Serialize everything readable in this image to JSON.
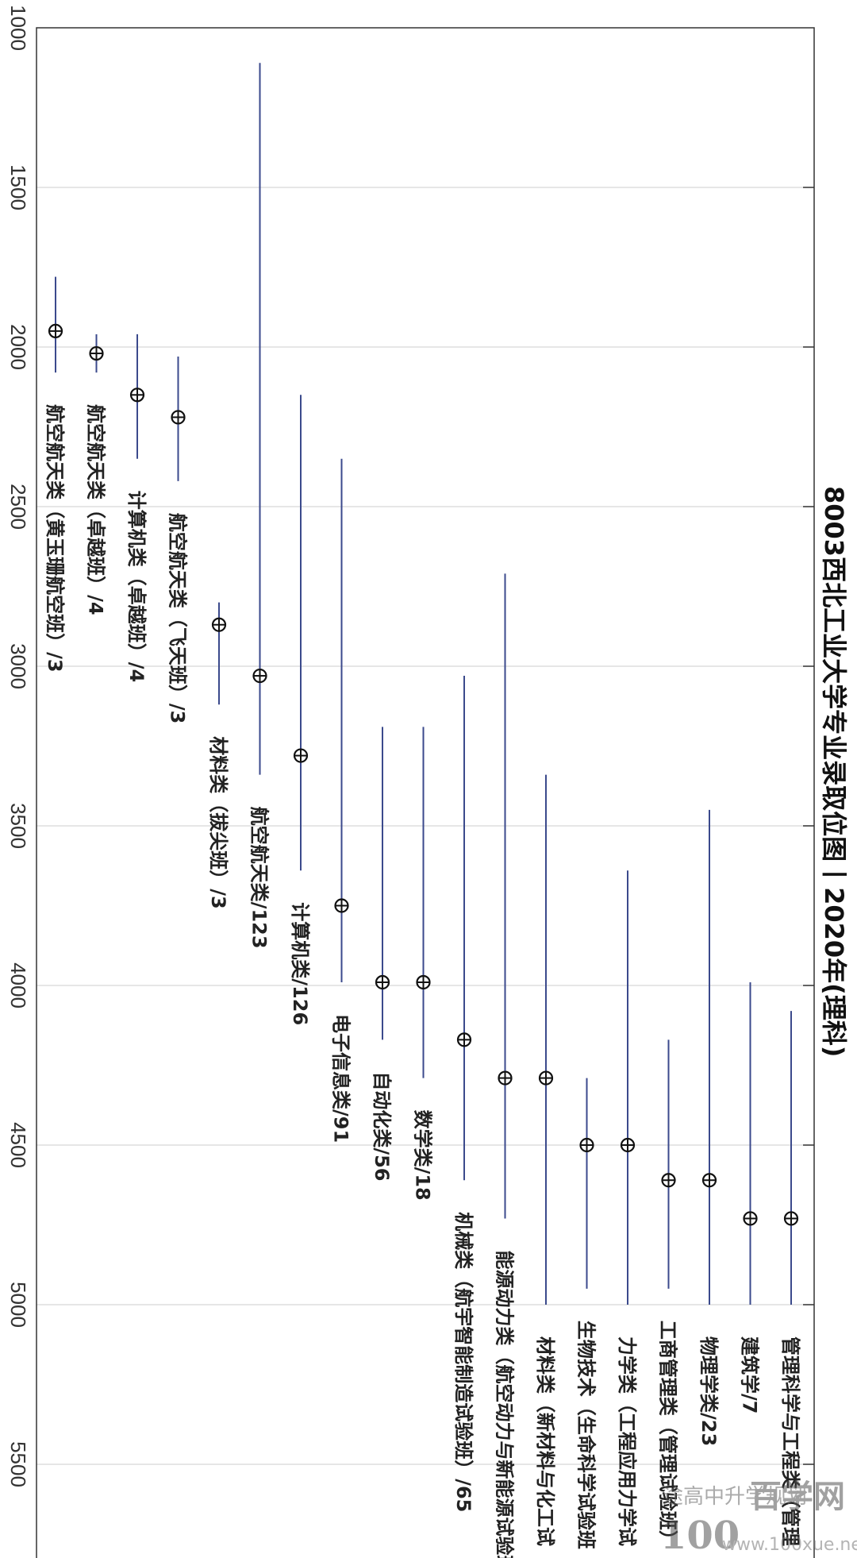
{
  "chart_data": {
    "type": "scatter",
    "title": "8003西北工业大学专业录取位图丨2020年(理科)",
    "xlabel": "",
    "ylabel": "",
    "rank_axis_range": [
      1000,
      5800
    ],
    "rank_ticks": [
      1000,
      1500,
      2000,
      2500,
      3000,
      3500,
      4000,
      4500,
      5000,
      5500
    ],
    "grid": true,
    "series": [
      {
        "points": [
          {
            "label": "航空航天类（黄玉珊航空班）/3",
            "marker": 1950,
            "low": 1780,
            "high": 2080
          },
          {
            "label": "航空航天类（卓越班）/4",
            "marker": 2020,
            "low": 1960,
            "high": 2080
          },
          {
            "label": "计算机类（卓越班）/4",
            "marker": 2150,
            "low": 1960,
            "high": 2350
          },
          {
            "label": "航空航天类（飞天班）/3",
            "marker": 2220,
            "low": 2030,
            "high": 2420
          },
          {
            "label": "材料类（拔尖班）/3",
            "marker": 2870,
            "low": 2800,
            "high": 3120
          },
          {
            "label": "航空航天类/123",
            "marker": 3030,
            "low": 1110,
            "high": 3340
          },
          {
            "label": "计算机类/126",
            "marker": 3280,
            "low": 2150,
            "high": 3640
          },
          {
            "label": "电子信息类/91",
            "marker": 3750,
            "low": 2350,
            "high": 3990
          },
          {
            "label": "自动化类/56",
            "marker": 3990,
            "low": 3190,
            "high": 4170
          },
          {
            "label": "数学类/18",
            "marker": 3990,
            "low": 3190,
            "high": 4290
          },
          {
            "label": "机械类（航宇智能制造试验班）/65",
            "marker": 4170,
            "low": 3030,
            "high": 4610
          },
          {
            "label": "能源动力类（航空动力与新能源试验班）",
            "marker": 4290,
            "low": 2710,
            "high": 4730
          },
          {
            "label": "材料类（新材料与化工试",
            "marker": 4290,
            "low": 3340,
            "high": 5000
          },
          {
            "label": "生物技术（生命科学试验班",
            "marker": 4500,
            "low": 4290,
            "high": 4950
          },
          {
            "label": "力学类（工程应用力学试",
            "marker": 4500,
            "low": 3640,
            "high": 5000
          },
          {
            "label": "工商管理类（管理试验班）",
            "marker": 4610,
            "low": 4170,
            "high": 4950
          },
          {
            "label": "物理学类/23",
            "marker": 4610,
            "low": 3450,
            "high": 5000
          },
          {
            "label": "建筑学/7",
            "marker": 4730,
            "low": 3990,
            "high": 5000
          },
          {
            "label": "管理科学与工程类（管理",
            "marker": 4730,
            "low": 4080,
            "high": 5000
          }
        ]
      }
    ]
  },
  "watermark": {
    "line1": "途高中升学规划",
    "logo_digits": "100",
    "logo_text": "百学网",
    "url": "www.100xue.net"
  }
}
